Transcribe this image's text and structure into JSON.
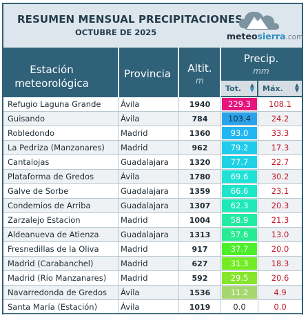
{
  "header": {
    "title": "RESUMEN MENSUAL PRECIPITACIONES",
    "subtitle": "OCTUBRE DE 2025",
    "brand_a": "meteo",
    "brand_b": "sierra",
    "brand_c": ".com"
  },
  "columns": {
    "station": "Estación meteorológica",
    "province": "Provincia",
    "altitude": "Altit.",
    "altitude_unit": "m",
    "precip": "Precip.",
    "precip_unit": "mm",
    "total": "Tot.",
    "max": "Máx."
  },
  "colors": {
    "header_bg": "#2f6178",
    "max_text": "#c21a2a"
  },
  "rows": [
    {
      "station": "Refugio Laguna Grande",
      "province": "Ávila",
      "alt": "1940",
      "tot": "229.3",
      "max": "108.1",
      "color": "#e8137e",
      "light": true
    },
    {
      "station": "Guisando",
      "province": "Ávila",
      "alt": "784",
      "tot": "103.4",
      "max": "24.2",
      "color": "#2ba3ea",
      "light": false
    },
    {
      "station": "Robledondo",
      "province": "Madrid",
      "alt": "1360",
      "tot": "93.0",
      "max": "33.3",
      "color": "#21b6f1",
      "light": true
    },
    {
      "station": "La Pedriza (Manzanares)",
      "province": "Madrid",
      "alt": "962",
      "tot": "79.2",
      "max": "17.3",
      "color": "#1fcbea",
      "light": true
    },
    {
      "station": "Cantalojas",
      "province": "Guadalajara",
      "alt": "1320",
      "tot": "77.7",
      "max": "22.7",
      "color": "#1fd2e6",
      "light": true
    },
    {
      "station": "Plataforma de Gredos",
      "province": "Ávila",
      "alt": "1780",
      "tot": "69.6",
      "max": "30.2",
      "color": "#1ee2d5",
      "light": true
    },
    {
      "station": "Galve de Sorbe",
      "province": "Guadalajara",
      "alt": "1359",
      "tot": "66.6",
      "max": "23.1",
      "color": "#1ee6c9",
      "light": true
    },
    {
      "station": "Condemios de Arriba",
      "province": "Guadalajara",
      "alt": "1307",
      "tot": "62.3",
      "max": "20.3",
      "color": "#1ee9b8",
      "light": true
    },
    {
      "station": "Zarzalejo Estacion",
      "province": "Madrid",
      "alt": "1004",
      "tot": "58.9",
      "max": "21.3",
      "color": "#22eba3",
      "light": true
    },
    {
      "station": "Aldeanueva de Atienza",
      "province": "Guadalajara",
      "alt": "1313",
      "tot": "57.6",
      "max": "13.0",
      "color": "#26eb93",
      "light": true
    },
    {
      "station": "Fresnedillas de la Oliva",
      "province": "Madrid",
      "alt": "917",
      "tot": "37.7",
      "max": "20.0",
      "color": "#4cf02a",
      "light": true
    },
    {
      "station": "Madrid (Carabanchel)",
      "province": "Madrid",
      "alt": "627",
      "tot": "31.3",
      "max": "18.3",
      "color": "#73ec24",
      "light": true
    },
    {
      "station": "Madrid (Río Manzanares)",
      "province": "Madrid",
      "alt": "592",
      "tot": "29.5",
      "max": "20.6",
      "color": "#86e62b",
      "light": true
    },
    {
      "station": "Navarredonda de Gredos",
      "province": "Ávila",
      "alt": "1536",
      "tot": "11.2",
      "max": "4.9",
      "color": "#a6d76f",
      "light": true
    },
    {
      "station": "Santa María (Estación)",
      "province": "Ávila",
      "alt": "1019",
      "tot": "0.0",
      "max": "0.0",
      "color": "",
      "light": false
    }
  ]
}
